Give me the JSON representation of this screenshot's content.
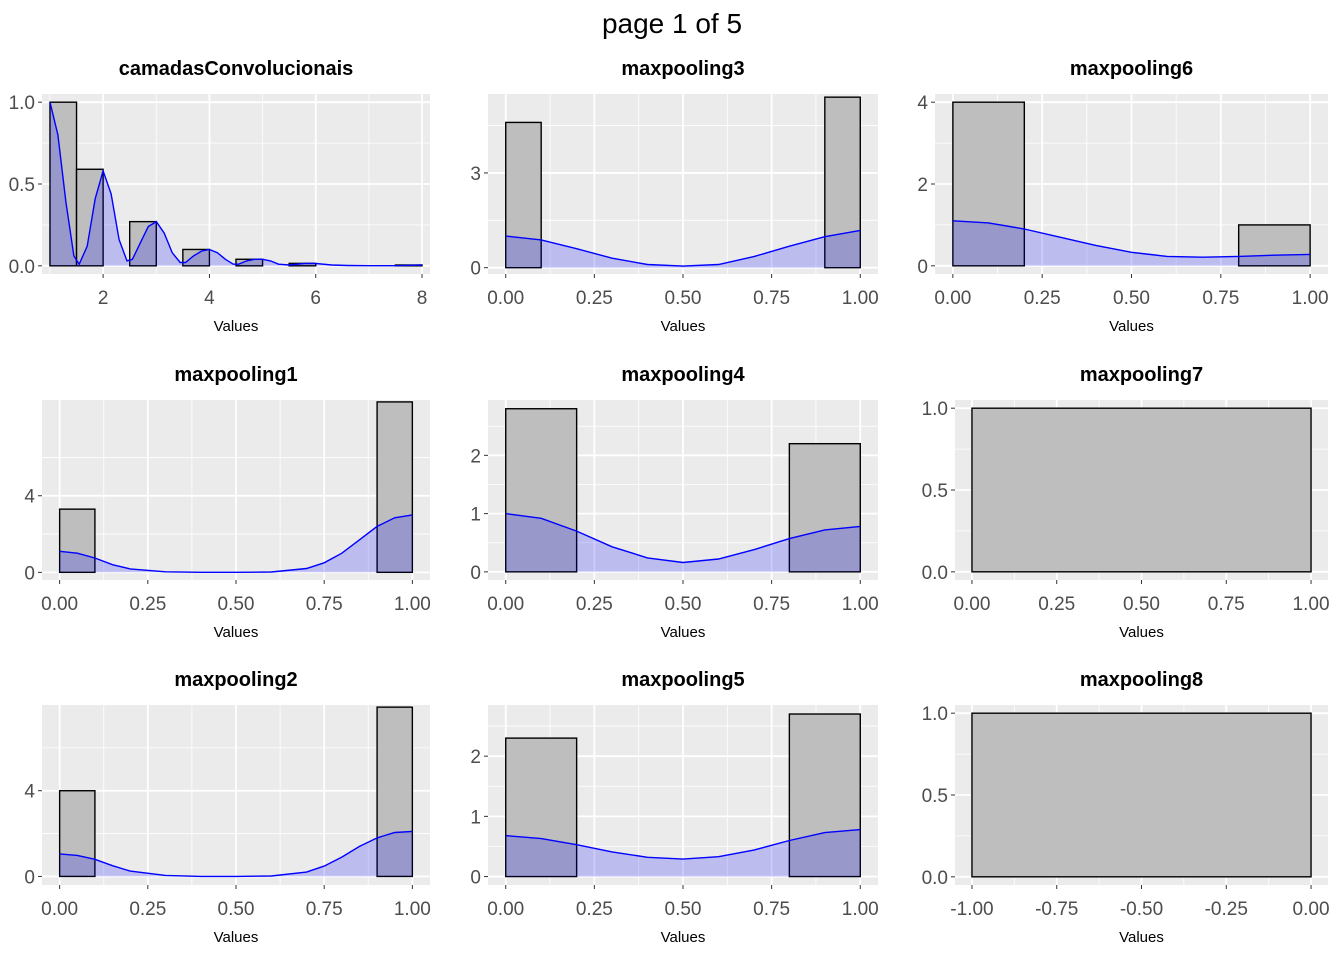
{
  "page_title": "page 1 of 5",
  "colors": {
    "panel_bg": "#ebebeb",
    "grid": "#ffffff",
    "bar_fill": "#bebebe",
    "bar_stroke": "#000000",
    "density_line": "#0000ff",
    "density_fill": "#0000ff"
  },
  "chart_data": [
    {
      "type": "bar",
      "title": "camadasConvolucionais",
      "xlabel": "Values",
      "ylabel": "",
      "xlim": [
        0.85,
        8.15
      ],
      "ylim": [
        -0.05,
        1.05
      ],
      "xticks": [
        2,
        4,
        6,
        8
      ],
      "xtick_labels": [
        "2",
        "4",
        "6",
        "8"
      ],
      "yticks": [
        0,
        0.5,
        1
      ],
      "ytick_labels": [
        "0.0",
        "0.5",
        "1.0"
      ],
      "bins": [
        {
          "x0": 1.0,
          "x1": 1.5,
          "y": 1.0
        },
        {
          "x0": 1.5,
          "x1": 2.0,
          "y": 0.59
        },
        {
          "x0": 2.5,
          "x1": 3.0,
          "y": 0.27
        },
        {
          "x0": 3.5,
          "x1": 4.0,
          "y": 0.1
        },
        {
          "x0": 4.5,
          "x1": 5.0,
          "y": 0.04
        },
        {
          "x0": 5.5,
          "x1": 6.0,
          "y": 0.015
        },
        {
          "x0": 7.5,
          "x1": 8.0,
          "y": 0.005
        }
      ],
      "density": {
        "x": [
          1.0,
          1.15,
          1.3,
          1.45,
          1.55,
          1.7,
          1.85,
          2.0,
          2.15,
          2.3,
          2.45,
          2.55,
          2.7,
          2.85,
          3.0,
          3.15,
          3.3,
          3.45,
          3.55,
          3.7,
          3.85,
          4.0,
          4.15,
          4.3,
          4.45,
          4.55,
          4.7,
          4.85,
          5.0,
          5.15,
          5.3,
          5.5,
          5.8,
          6.0,
          6.3,
          6.6,
          7.0,
          7.5,
          8.0
        ],
        "y": [
          1.0,
          0.8,
          0.39,
          0.06,
          0.01,
          0.12,
          0.41,
          0.58,
          0.44,
          0.16,
          0.03,
          0.04,
          0.14,
          0.24,
          0.27,
          0.2,
          0.08,
          0.02,
          0.02,
          0.06,
          0.09,
          0.1,
          0.08,
          0.04,
          0.01,
          0.01,
          0.03,
          0.04,
          0.04,
          0.03,
          0.01,
          0.005,
          0.015,
          0.015,
          0.005,
          0.002,
          0.001,
          0.001,
          0.005
        ]
      }
    },
    {
      "type": "bar",
      "title": "maxpooling3",
      "xlabel": "Values",
      "ylabel": "",
      "xlim": [
        -0.05,
        1.05
      ],
      "ylim": [
        -0.2,
        5.5
      ],
      "xticks": [
        0,
        0.25,
        0.5,
        0.75,
        1
      ],
      "xtick_labels": [
        "0.00",
        "0.25",
        "0.50",
        "0.75",
        "1.00"
      ],
      "yticks": [
        0,
        3
      ],
      "ytick_labels": [
        "0",
        "3"
      ],
      "bins": [
        {
          "x0": 0.0,
          "x1": 0.1,
          "y": 4.6
        },
        {
          "x0": 0.9,
          "x1": 1.0,
          "y": 5.4
        }
      ],
      "density": {
        "x": [
          0.0,
          0.1,
          0.2,
          0.3,
          0.4,
          0.5,
          0.6,
          0.7,
          0.8,
          0.9,
          1.0
        ],
        "y": [
          1.0,
          0.88,
          0.6,
          0.3,
          0.1,
          0.05,
          0.1,
          0.35,
          0.68,
          0.98,
          1.18
        ]
      }
    },
    {
      "type": "bar",
      "title": "maxpooling6",
      "xlabel": "Values",
      "ylabel": "",
      "xlim": [
        -0.05,
        1.05
      ],
      "ylim": [
        -0.2,
        4.2
      ],
      "xticks": [
        0,
        0.25,
        0.5,
        0.75,
        1
      ],
      "xtick_labels": [
        "0.00",
        "0.25",
        "0.50",
        "0.75",
        "1.00"
      ],
      "yticks": [
        0,
        2,
        4
      ],
      "ytick_labels": [
        "0",
        "2",
        "4"
      ],
      "bins": [
        {
          "x0": 0.0,
          "x1": 0.2,
          "y": 4.0
        },
        {
          "x0": 0.8,
          "x1": 1.0,
          "y": 1.0
        }
      ],
      "density": {
        "x": [
          0.0,
          0.1,
          0.2,
          0.3,
          0.4,
          0.5,
          0.6,
          0.7,
          0.8,
          0.9,
          1.0
        ],
        "y": [
          1.1,
          1.05,
          0.9,
          0.7,
          0.5,
          0.33,
          0.23,
          0.21,
          0.23,
          0.26,
          0.28
        ]
      }
    },
    {
      "type": "bar",
      "title": "maxpooling1",
      "xlabel": "Values",
      "ylabel": "",
      "xlim": [
        -0.05,
        1.05
      ],
      "ylim": [
        -0.4,
        9.0
      ],
      "xticks": [
        0,
        0.25,
        0.5,
        0.75,
        1
      ],
      "xtick_labels": [
        "0.00",
        "0.25",
        "0.50",
        "0.75",
        "1.00"
      ],
      "yticks": [
        0,
        4
      ],
      "ytick_labels": [
        "0",
        "4"
      ],
      "bins": [
        {
          "x0": 0.0,
          "x1": 0.1,
          "y": 3.3
        },
        {
          "x0": 0.9,
          "x1": 1.0,
          "y": 8.9
        }
      ],
      "density": {
        "x": [
          0.0,
          0.05,
          0.1,
          0.15,
          0.2,
          0.3,
          0.4,
          0.5,
          0.6,
          0.7,
          0.75,
          0.8,
          0.85,
          0.9,
          0.95,
          1.0
        ],
        "y": [
          1.1,
          1.0,
          0.75,
          0.4,
          0.18,
          0.03,
          0.0,
          0.0,
          0.02,
          0.2,
          0.5,
          1.0,
          1.7,
          2.4,
          2.85,
          3.0
        ]
      }
    },
    {
      "type": "bar",
      "title": "maxpooling4",
      "xlabel": "Values",
      "ylabel": "",
      "xlim": [
        -0.05,
        1.05
      ],
      "ylim": [
        -0.14,
        2.95
      ],
      "xticks": [
        0,
        0.25,
        0.5,
        0.75,
        1
      ],
      "xtick_labels": [
        "0.00",
        "0.25",
        "0.50",
        "0.75",
        "1.00"
      ],
      "yticks": [
        0,
        1,
        2
      ],
      "ytick_labels": [
        "0",
        "1",
        "2"
      ],
      "bins": [
        {
          "x0": 0.0,
          "x1": 0.2,
          "y": 2.8
        },
        {
          "x0": 0.8,
          "x1": 1.0,
          "y": 2.2
        }
      ],
      "density": {
        "x": [
          0.0,
          0.1,
          0.2,
          0.3,
          0.4,
          0.5,
          0.6,
          0.7,
          0.8,
          0.9,
          1.0
        ],
        "y": [
          1.0,
          0.92,
          0.7,
          0.43,
          0.24,
          0.16,
          0.22,
          0.38,
          0.57,
          0.72,
          0.78
        ]
      }
    },
    {
      "type": "bar",
      "title": "maxpooling7",
      "xlabel": "Values",
      "ylabel": "",
      "xlim": [
        -0.05,
        1.05
      ],
      "ylim": [
        -0.05,
        1.05
      ],
      "xticks": [
        0,
        0.25,
        0.5,
        0.75,
        1
      ],
      "xtick_labels": [
        "0.00",
        "0.25",
        "0.50",
        "0.75",
        "1.00"
      ],
      "yticks": [
        0,
        0.5,
        1
      ],
      "ytick_labels": [
        "0.0",
        "0.5",
        "1.0"
      ],
      "bins": [
        {
          "x0": 0.0,
          "x1": 1.0,
          "y": 1.0
        }
      ],
      "density": null
    },
    {
      "type": "bar",
      "title": "maxpooling2",
      "xlabel": "Values",
      "ylabel": "",
      "xlim": [
        -0.05,
        1.05
      ],
      "ylim": [
        -0.4,
        8.0
      ],
      "xticks": [
        0,
        0.25,
        0.5,
        0.75,
        1
      ],
      "xtick_labels": [
        "0.00",
        "0.25",
        "0.50",
        "0.75",
        "1.00"
      ],
      "yticks": [
        0,
        4
      ],
      "ytick_labels": [
        "0",
        "4"
      ],
      "bins": [
        {
          "x0": 0.0,
          "x1": 0.1,
          "y": 4.0
        },
        {
          "x0": 0.9,
          "x1": 1.0,
          "y": 7.9
        }
      ],
      "density": {
        "x": [
          0.0,
          0.05,
          0.1,
          0.15,
          0.2,
          0.3,
          0.4,
          0.5,
          0.6,
          0.7,
          0.75,
          0.8,
          0.85,
          0.9,
          0.95,
          1.0
        ],
        "y": [
          1.05,
          0.98,
          0.8,
          0.5,
          0.25,
          0.05,
          0.0,
          0.0,
          0.02,
          0.2,
          0.48,
          0.9,
          1.4,
          1.8,
          2.05,
          2.1
        ]
      }
    },
    {
      "type": "bar",
      "title": "maxpooling5",
      "xlabel": "Values",
      "ylabel": "",
      "xlim": [
        -0.05,
        1.05
      ],
      "ylim": [
        -0.14,
        2.85
      ],
      "xticks": [
        0,
        0.25,
        0.5,
        0.75,
        1
      ],
      "xtick_labels": [
        "0.00",
        "0.25",
        "0.50",
        "0.75",
        "1.00"
      ],
      "yticks": [
        0,
        1,
        2
      ],
      "ytick_labels": [
        "0",
        "1",
        "2"
      ],
      "bins": [
        {
          "x0": 0.0,
          "x1": 0.2,
          "y": 2.3
        },
        {
          "x0": 0.8,
          "x1": 1.0,
          "y": 2.7
        }
      ],
      "density": {
        "x": [
          0.0,
          0.1,
          0.2,
          0.3,
          0.4,
          0.5,
          0.6,
          0.7,
          0.8,
          0.9,
          1.0
        ],
        "y": [
          0.68,
          0.63,
          0.53,
          0.41,
          0.32,
          0.29,
          0.33,
          0.44,
          0.6,
          0.73,
          0.78
        ]
      }
    },
    {
      "type": "bar",
      "title": "maxpooling8",
      "xlabel": "Values",
      "ylabel": "",
      "xlim": [
        -1.05,
        0.05
      ],
      "ylim": [
        -0.05,
        1.05
      ],
      "xticks": [
        -1,
        -0.75,
        -0.5,
        -0.25,
        0
      ],
      "xtick_labels": [
        "-1.00",
        "-0.75",
        "-0.50",
        "-0.25",
        "0.00"
      ],
      "yticks": [
        0,
        0.5,
        1
      ],
      "ytick_labels": [
        "0.0",
        "0.5",
        "1.0"
      ],
      "bins": [
        {
          "x0": -1.0,
          "x1": 0.0,
          "y": 1.0
        }
      ],
      "density": null
    }
  ]
}
